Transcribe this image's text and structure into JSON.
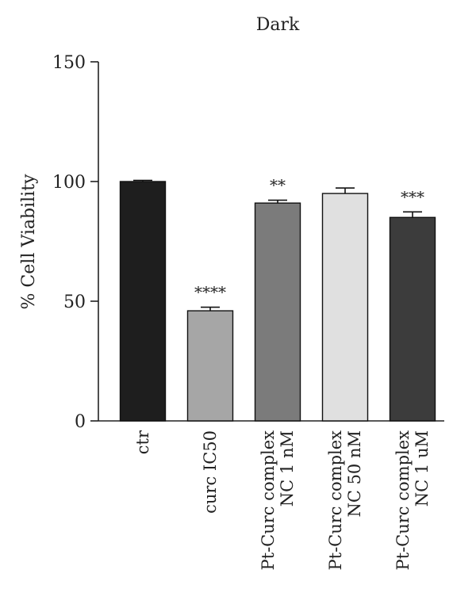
{
  "chart_data": {
    "type": "bar",
    "title": "Dark",
    "ylabel": "% Cell Viability",
    "xlabel": "",
    "ylim": [
      0,
      150
    ],
    "yticks": [
      0,
      50,
      100,
      150
    ],
    "categories": [
      [
        "ctr"
      ],
      [
        "curc IC50"
      ],
      [
        "Pt-Curc complex",
        "NC 1 nM"
      ],
      [
        "Pt-Curc complex",
        "NC 50 nM"
      ],
      [
        "Pt-Curc complex",
        "NC 1 uM"
      ]
    ],
    "values": [
      100,
      46,
      91,
      95,
      85
    ],
    "errors": [
      0.5,
      1.5,
      1.2,
      2.3,
      2.3
    ],
    "significance": [
      "",
      "****",
      "**",
      "",
      "***"
    ],
    "colors": [
      "#1e1e1e",
      "#a6a6a6",
      "#7b7b7b",
      "#e0e0e0",
      "#3c3c3c"
    ],
    "grid": false
  }
}
